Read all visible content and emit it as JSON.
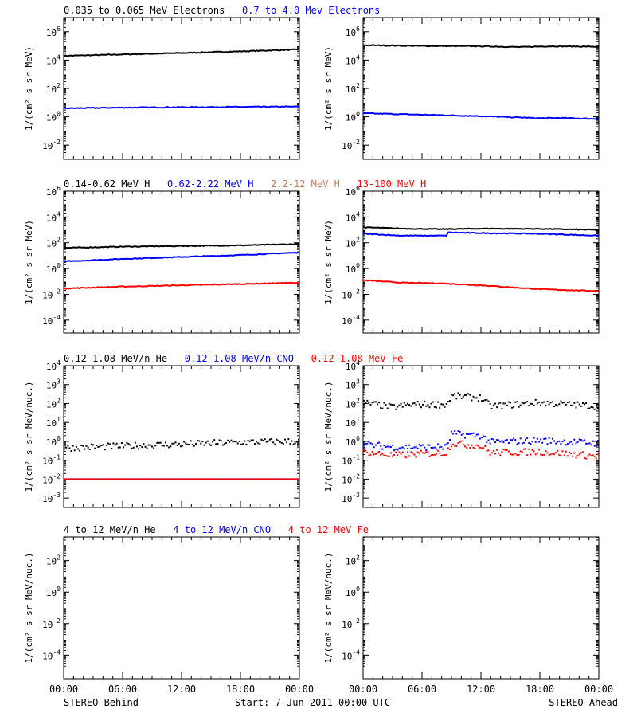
{
  "footer": {
    "left_label": "STEREO Behind",
    "center_label": "Start:  7-Jun-2011 00:00 UTC",
    "right_label": "STEREO Ahead"
  },
  "chart_data": {
    "type": "scatter",
    "title": "",
    "xlabel": "",
    "x_ticks": [
      "00:00",
      "06:00",
      "12:00",
      "18:00",
      "00:00"
    ],
    "xlim": [
      "2011-06-07T00:00",
      "2011-06-08T00:00"
    ],
    "y_scale": "log",
    "colors": {
      "black": "#000000",
      "blue": "#0000ff",
      "tan": "#c87a5a",
      "red": "#ff0000"
    },
    "rows": [
      {
        "ylabel": "1/(cm² s sr MeV)",
        "ylim_exp": [
          -3,
          7
        ],
        "y_tick_exps": [
          -2,
          0,
          2,
          4,
          6
        ],
        "legend": [
          {
            "label": "0.035 to 0.065 MeV Electrons",
            "color": "black"
          },
          {
            "label": "0.7 to 4.0 Mev Electrons",
            "color": "blue"
          }
        ],
        "panels": [
          {
            "spacecraft": "STEREO Behind",
            "series": [
              {
                "name": "0.035 to 0.065 MeV Electrons",
                "color": "black",
                "style": "line",
                "x_hours": [
                  0,
                  6,
                  12,
                  18,
                  24
                ],
                "y_exp": [
                  4.3,
                  4.4,
                  4.5,
                  4.62,
                  4.75
                ]
              },
              {
                "name": "0.7 to 4.0 Mev Electrons",
                "color": "blue",
                "style": "line",
                "x_hours": [
                  0,
                  6,
                  12,
                  18,
                  24
                ],
                "y_exp": [
                  0.6,
                  0.65,
                  0.68,
                  0.7,
                  0.72
                ]
              }
            ]
          },
          {
            "spacecraft": "STEREO Ahead",
            "series": [
              {
                "name": "0.035 to 0.065 MeV Electrons",
                "color": "black",
                "style": "line",
                "x_hours": [
                  0,
                  6,
                  12,
                  16,
                  19,
                  24
                ],
                "y_exp": [
                  5.05,
                  5.0,
                  4.98,
                  4.92,
                  4.98,
                  4.95
                ]
              },
              {
                "name": "0.7 to 4.0 Mev Electrons",
                "color": "blue",
                "style": "line",
                "x_hours": [
                  0,
                  6,
                  12,
                  18,
                  20,
                  24
                ],
                "y_exp": [
                  0.25,
                  0.15,
                  0.05,
                  -0.1,
                  -0.08,
                  -0.15
                ]
              }
            ]
          }
        ]
      },
      {
        "ylabel": "1/(cm² s sr MeV)",
        "ylim_exp": [
          -5,
          6
        ],
        "y_tick_exps": [
          -4,
          -2,
          0,
          2,
          4,
          6
        ],
        "legend": [
          {
            "label": "0.14-0.62 MeV H",
            "color": "black"
          },
          {
            "label": "0.62-2.22 MeV H",
            "color": "blue"
          },
          {
            "label": "2.2-12 MeV H",
            "color": "tan"
          },
          {
            "label": "13-100 MeV H",
            "color": "red"
          }
        ],
        "panels": [
          {
            "spacecraft": "STEREO Behind",
            "series": [
              {
                "name": "0.14-0.62 MeV H",
                "color": "black",
                "style": "line",
                "x_hours": [
                  0,
                  6,
                  12,
                  18,
                  24
                ],
                "y_exp": [
                  1.6,
                  1.7,
                  1.75,
                  1.8,
                  1.9
                ]
              },
              {
                "name": "0.62-2.22 MeV H",
                "color": "blue",
                "style": "line",
                "x_hours": [
                  0,
                  6,
                  12,
                  18,
                  24
                ],
                "y_exp": [
                  0.55,
                  0.75,
                  0.9,
                  1.05,
                  1.25
                ]
              },
              {
                "name": "13-100 MeV H",
                "color": "red",
                "style": "line",
                "x_hours": [
                  0,
                  6,
                  12,
                  18,
                  24
                ],
                "y_exp": [
                  -1.55,
                  -1.4,
                  -1.3,
                  -1.2,
                  -1.1
                ]
              }
            ]
          },
          {
            "spacecraft": "STEREO Ahead",
            "series": [
              {
                "name": "0.14-0.62 MeV H",
                "color": "black",
                "style": "line",
                "x_hours": [
                  0,
                  4,
                  8,
                  12,
                  18,
                  24
                ],
                "y_exp": [
                  3.2,
                  3.1,
                  3.05,
                  3.1,
                  3.08,
                  3.0
                ]
              },
              {
                "name": "0.62-2.22 MeV H",
                "color": "blue",
                "style": "line",
                "x_hours": [
                  0,
                  4,
                  8.5,
                  8.6,
                  12,
                  18,
                  24
                ],
                "y_exp": [
                  2.7,
                  2.55,
                  2.55,
                  2.8,
                  2.75,
                  2.7,
                  2.55
                ]
              },
              {
                "name": "13-100 MeV H",
                "color": "red",
                "style": "line",
                "x_hours": [
                  0,
                  4,
                  8,
                  12,
                  18,
                  24
                ],
                "y_exp": [
                  -0.9,
                  -1.1,
                  -1.15,
                  -1.3,
                  -1.6,
                  -1.75
                ]
              }
            ]
          }
        ]
      },
      {
        "ylabel": "1/(cm² s sr MeV/nuc.)",
        "ylim_exp": [
          -3.5,
          4
        ],
        "y_tick_exps": [
          -3,
          -2,
          -1,
          0,
          1,
          2,
          3,
          4
        ],
        "legend": [
          {
            "label": "0.12-1.08 MeV/n He",
            "color": "black"
          },
          {
            "label": "0.12-1.08 MeV/n CNO",
            "color": "blue"
          },
          {
            "label": "0.12-1.08 MeV Fe",
            "color": "red"
          }
        ],
        "panels": [
          {
            "spacecraft": "STEREO Behind",
            "series": [
              {
                "name": "0.12-1.08 MeV/n He",
                "color": "black",
                "style": "dots",
                "x_hours": [
                  0,
                  6,
                  12,
                  18,
                  24
                ],
                "y_exp": [
                  -0.35,
                  -0.25,
                  -0.15,
                  -0.05,
                  0.0
                ]
              },
              {
                "name": "0.12-1.08 MeV/n CNO",
                "color": "blue",
                "style": "dots",
                "x_hours": [
                  0,
                  24
                ],
                "y_exp": [
                  -2.0,
                  -2.0
                ]
              },
              {
                "name": "0.12-1.08 MeV Fe",
                "color": "red",
                "style": "dots",
                "x_hours": [
                  0,
                  24
                ],
                "y_exp": [
                  -2.0,
                  -2.0
                ]
              }
            ]
          },
          {
            "spacecraft": "STEREO Ahead",
            "series": [
              {
                "name": "0.12-1.08 MeV/n He",
                "color": "black",
                "style": "dots",
                "x_hours": [
                  0,
                  3,
                  5,
                  8.5,
                  9,
                  12,
                  13,
                  18,
                  24
                ],
                "y_exp": [
                  2.05,
                  1.8,
                  1.95,
                  1.95,
                  2.4,
                  2.3,
                  1.85,
                  2.05,
                  1.85
                ]
              },
              {
                "name": "0.12-1.08 MeV/n CNO",
                "color": "blue",
                "style": "dots",
                "x_hours": [
                  0,
                  3,
                  8.5,
                  9,
                  12,
                  13,
                  18,
                  24
                ],
                "y_exp": [
                  -0.15,
                  -0.3,
                  -0.3,
                  0.4,
                  0.3,
                  -0.05,
                  0.05,
                  -0.1
                ]
              },
              {
                "name": "0.12-1.08 MeV Fe",
                "color": "red",
                "style": "dots",
                "x_hours": [
                  0,
                  3,
                  8.5,
                  9,
                  12,
                  13,
                  18,
                  24
                ],
                "y_exp": [
                  -0.55,
                  -0.75,
                  -0.6,
                  -0.1,
                  -0.25,
                  -0.6,
                  -0.55,
                  -0.8
                ]
              }
            ]
          }
        ]
      },
      {
        "ylabel": "1/(cm² s sr MeV/nuc.)",
        "ylim_exp": [
          -5.5,
          3.5
        ],
        "y_tick_exps": [
          -4,
          -2,
          0,
          2
        ],
        "legend": [
          {
            "label": "4 to 12 MeV/n He",
            "color": "black"
          },
          {
            "label": "4 to 12 MeV/n CNO",
            "color": "blue"
          },
          {
            "label": "4 to 12 MeV Fe",
            "color": "red"
          }
        ],
        "panels": [
          {
            "spacecraft": "STEREO Behind",
            "series": []
          },
          {
            "spacecraft": "STEREO Ahead",
            "series": []
          }
        ]
      }
    ]
  }
}
